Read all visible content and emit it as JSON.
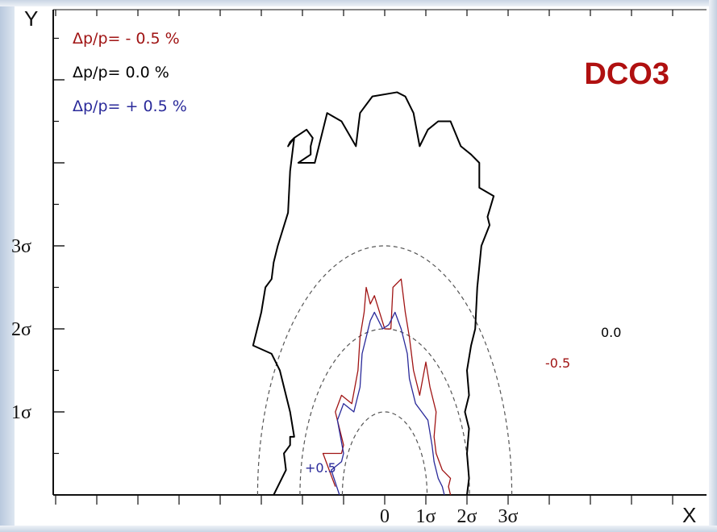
{
  "chart_data": {
    "type": "line",
    "title": "DCO3",
    "xlabel": "X",
    "ylabel": "Y",
    "x_tick_labels": [
      "0",
      "1σ",
      "2σ",
      "3σ"
    ],
    "y_tick_labels": [
      "1σ",
      "2σ",
      "3σ"
    ],
    "units": "sigma",
    "legend": {
      "placement": "top-left",
      "entries": [
        "Δp/p=  - 0.5 %",
        "Δp/p=   0.0  %",
        "Δp/p= + 0.5 %"
      ]
    },
    "sigma_ellipses": [
      1,
      2,
      3
    ],
    "series": [
      {
        "name": "0.0",
        "color": "#000000",
        "points": [
          [
            -2.7,
            0
          ],
          [
            -2.4,
            0.3
          ],
          [
            -2.45,
            0.5
          ],
          [
            -2.3,
            0.6
          ],
          [
            -2.3,
            0.7
          ],
          [
            -2.2,
            0.7
          ],
          [
            -2.3,
            1.0
          ],
          [
            -2.55,
            1.5
          ],
          [
            -2.75,
            1.7
          ],
          [
            -3.2,
            1.8
          ],
          [
            -3.0,
            2.2
          ],
          [
            -2.9,
            2.5
          ],
          [
            -2.75,
            2.6
          ],
          [
            -2.7,
            2.8
          ],
          [
            -2.6,
            3.0
          ],
          [
            -2.35,
            3.4
          ],
          [
            -2.3,
            3.9
          ],
          [
            -2.25,
            4.1
          ],
          [
            -2.2,
            4.3
          ],
          [
            -2.35,
            4.2
          ],
          [
            -2.3,
            4.25
          ],
          [
            -2.3,
            4.25
          ],
          [
            -2.2,
            4.3
          ],
          [
            -1.9,
            4.4
          ],
          [
            -1.75,
            4.3
          ],
          [
            -1.8,
            4.2
          ],
          [
            -1.8,
            4.1
          ],
          [
            -2.1,
            4.0
          ],
          [
            -1.7,
            4.0
          ],
          [
            -1.4,
            4.6
          ],
          [
            -1.05,
            4.5
          ],
          [
            -0.7,
            4.2
          ],
          [
            -0.6,
            4.6
          ],
          [
            -0.45,
            4.7
          ],
          [
            -0.3,
            4.8
          ],
          [
            0.3,
            4.85
          ],
          [
            0.5,
            4.8
          ],
          [
            0.55,
            4.75
          ],
          [
            0.7,
            4.6
          ],
          [
            0.85,
            4.2
          ],
          [
            1.05,
            4.4
          ],
          [
            1.3,
            4.5
          ],
          [
            1.6,
            4.5
          ],
          [
            1.85,
            4.2
          ],
          [
            2.1,
            4.1
          ],
          [
            2.3,
            4.0
          ],
          [
            2.3,
            3.7
          ],
          [
            2.65,
            3.6
          ],
          [
            2.5,
            3.35
          ],
          [
            2.55,
            3.25
          ],
          [
            2.35,
            3.0
          ],
          [
            2.25,
            2.5
          ],
          [
            2.2,
            2.0
          ],
          [
            2.1,
            1.8
          ],
          [
            2.0,
            1.5
          ],
          [
            2.05,
            1.2
          ],
          [
            1.95,
            1.0
          ],
          [
            2.05,
            0.8
          ],
          [
            2.0,
            0.5
          ],
          [
            2.05,
            0.2
          ],
          [
            2.0,
            0
          ]
        ]
      },
      {
        "name": "-0.5",
        "color": "#a01414",
        "points": [
          [
            -1.2,
            0.1
          ],
          [
            -1.5,
            0.5
          ],
          [
            -1.05,
            0.5
          ],
          [
            -1.0,
            0.6
          ],
          [
            -1.2,
            1.0
          ],
          [
            -1.05,
            1.2
          ],
          [
            -0.8,
            1.1
          ],
          [
            -0.65,
            1.5
          ],
          [
            -0.6,
            1.9
          ],
          [
            -0.5,
            2.2
          ],
          [
            -0.45,
            2.5
          ],
          [
            -0.35,
            2.3
          ],
          [
            -0.25,
            2.4
          ],
          [
            0.0,
            2.0
          ],
          [
            0.15,
            2.0
          ],
          [
            0.2,
            2.5
          ],
          [
            0.4,
            2.6
          ],
          [
            0.5,
            2.2
          ],
          [
            0.6,
            1.9
          ],
          [
            0.7,
            1.5
          ],
          [
            0.85,
            1.2
          ],
          [
            1.0,
            1.6
          ],
          [
            1.1,
            1.3
          ],
          [
            1.25,
            1.0
          ],
          [
            1.2,
            0.7
          ],
          [
            1.25,
            0.5
          ],
          [
            1.4,
            0.3
          ],
          [
            1.6,
            0.2
          ],
          [
            1.55,
            0.1
          ],
          [
            1.6,
            0.0
          ]
        ]
      },
      {
        "name": "+0.5",
        "color": "#2a2a9a",
        "points": [
          [
            -1.1,
            0.0
          ],
          [
            -1.3,
            0.3
          ],
          [
            -1.05,
            0.4
          ],
          [
            -1.0,
            0.5
          ],
          [
            -1.15,
            0.9
          ],
          [
            -1.0,
            1.1
          ],
          [
            -0.75,
            1.0
          ],
          [
            -0.6,
            1.3
          ],
          [
            -0.55,
            1.7
          ],
          [
            -0.45,
            1.9
          ],
          [
            -0.35,
            2.1
          ],
          [
            -0.25,
            2.2
          ],
          [
            -0.05,
            2.0
          ],
          [
            0.1,
            2.05
          ],
          [
            0.25,
            2.2
          ],
          [
            0.4,
            2.0
          ],
          [
            0.55,
            1.7
          ],
          [
            0.6,
            1.4
          ],
          [
            0.75,
            1.1
          ],
          [
            0.9,
            1.0
          ],
          [
            1.05,
            0.9
          ],
          [
            1.15,
            0.6
          ],
          [
            1.2,
            0.4
          ],
          [
            1.3,
            0.2
          ],
          [
            1.4,
            0.1
          ],
          [
            1.45,
            0.0
          ]
        ]
      }
    ],
    "curve_labels": [
      "0.0",
      "-0.5",
      "+0.5"
    ],
    "colors": {
      "negative": "#a01414",
      "zero": "#000000",
      "positive": "#2a2a9a",
      "title": "#b01010",
      "ellipse": "#555555"
    }
  }
}
